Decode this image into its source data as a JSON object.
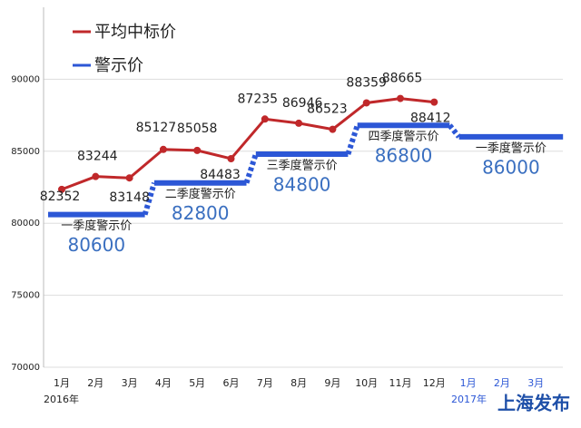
{
  "chart_data": {
    "type": "line",
    "legend": [
      "平均中标价",
      "警示价"
    ],
    "categories": [
      "1月",
      "2月",
      "3月",
      "4月",
      "5月",
      "6月",
      "7月",
      "8月",
      "9月",
      "10月",
      "11月",
      "12月",
      "1月",
      "2月",
      "3月"
    ],
    "years": [
      "2016年",
      "2017年"
    ],
    "series": [
      {
        "name": "平均中标价",
        "color": "#c0282a",
        "values": [
          82352,
          83244,
          83148,
          85127,
          85058,
          84483,
          87235,
          86946,
          86523,
          88359,
          88665,
          88412,
          null,
          null,
          null
        ]
      },
      {
        "name": "警示价",
        "color": "#2c57d6",
        "values": [
          80600,
          80600,
          80600,
          82800,
          82800,
          82800,
          84800,
          84800,
          84800,
          86800,
          86800,
          86800,
          86000,
          86000,
          86000
        ]
      }
    ],
    "quarter_labels": [
      "一季度警示价",
      "二季度警示价",
      "三季度警示价",
      "四季度警示价",
      "一季度警示价"
    ],
    "ylim": [
      70000,
      95000
    ],
    "yticks": [
      70000,
      75000,
      80000,
      85000,
      90000
    ],
    "grid": true,
    "logo": "上海发布"
  }
}
